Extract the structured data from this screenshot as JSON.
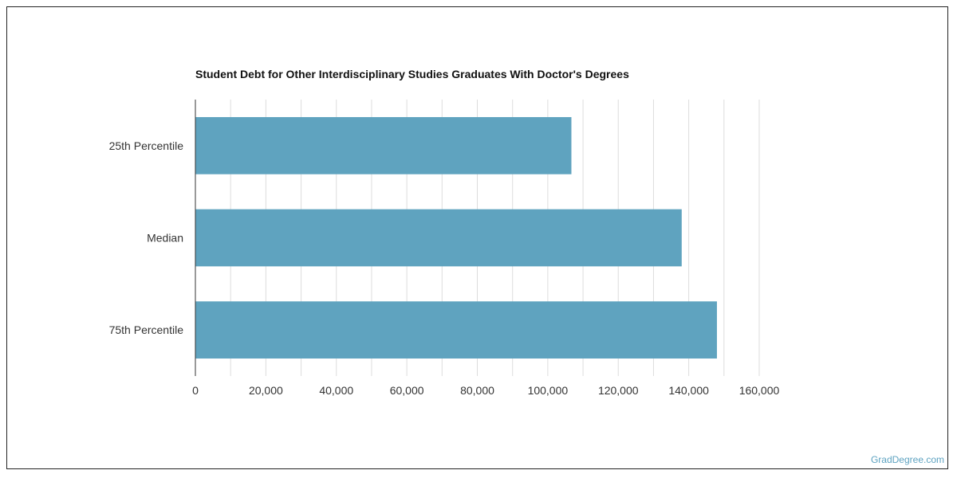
{
  "chart_data": {
    "type": "bar",
    "orientation": "horizontal",
    "title": "Student Debt for Other Interdisciplinary Studies Graduates With Doctor's Degrees",
    "categories": [
      "25th Percentile",
      "Median",
      "75th Percentile"
    ],
    "values": [
      106700,
      138000,
      148000
    ],
    "xlabel": "",
    "ylabel": "",
    "xlim": [
      0,
      160000
    ],
    "x_ticks": [
      "0",
      "20,000",
      "40,000",
      "60,000",
      "80,000",
      "100,000",
      "120,000",
      "140,000",
      "160,000"
    ],
    "grid": true,
    "legend": "none",
    "bar_color": "#5fa3bf"
  },
  "watermark": "GradDegree.com"
}
